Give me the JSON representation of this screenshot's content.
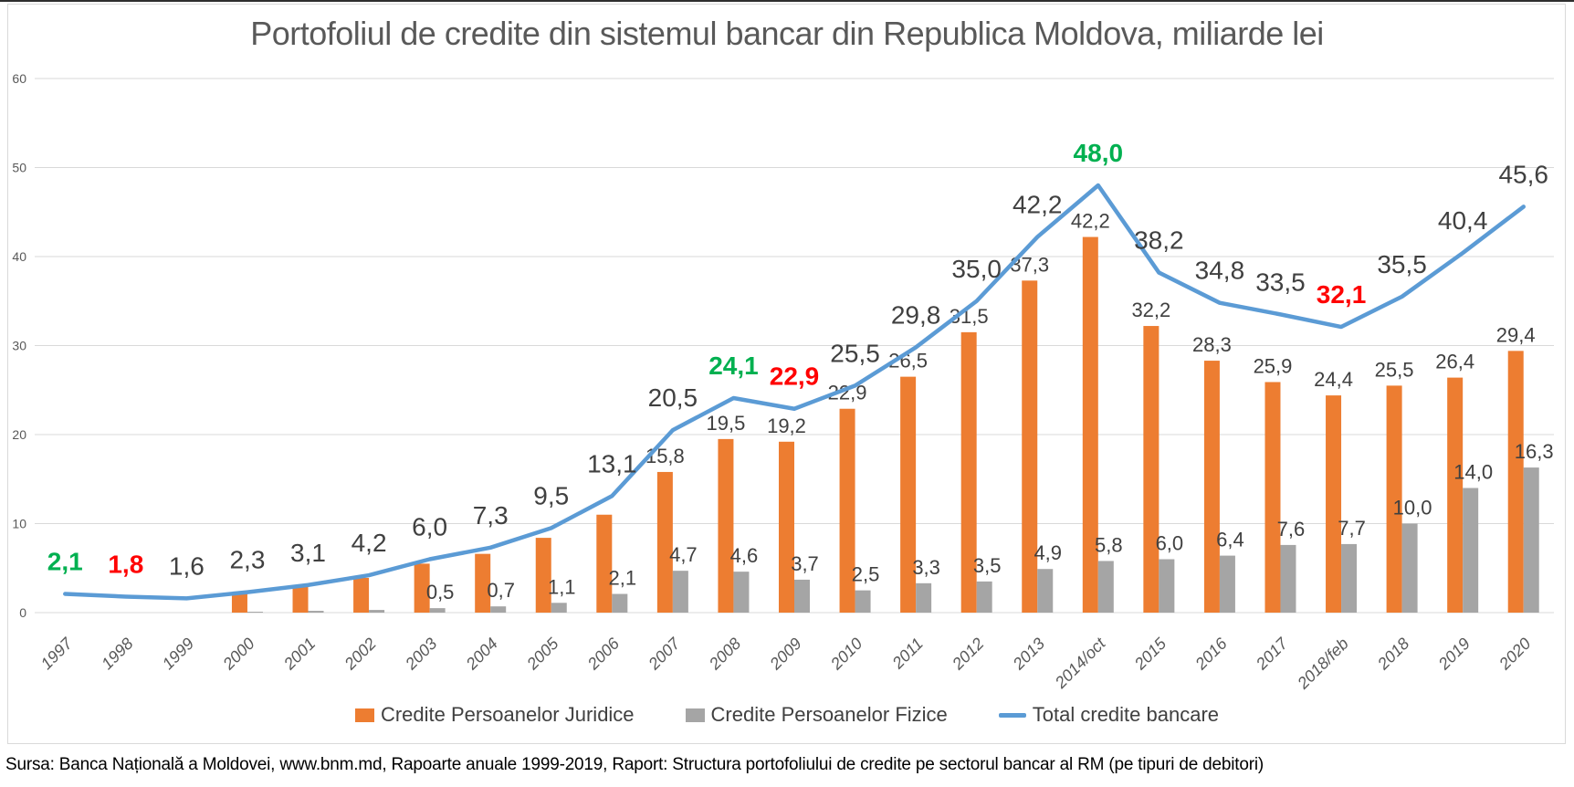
{
  "title": "Portofoliul de credite din sistemul bancar din Republica Moldova, miliarde lei",
  "source_note": "Sursa: Banca Națională a Moldovei, www.bnm.md, Rapoarte anuale 1999-2019, Raport: Structura portofoliului de credite pe sectorul bancar al RM (pe tipuri de debitori)",
  "legend": {
    "items": [
      {
        "label": "Credite Persoanelor Juridice",
        "color": "#ED7D31",
        "marker": "square"
      },
      {
        "label": "Credite Persoanelor Fizice",
        "color": "#A5A5A5",
        "marker": "square"
      },
      {
        "label": "Total credite bancare",
        "color": "#5B9BD5",
        "marker": "line"
      }
    ]
  },
  "chart_data": {
    "type": "bar+line",
    "title": "Portofoliul de credite din sistemul bancar din Republica Moldova, miliarde lei",
    "categories": [
      "1997",
      "1998",
      "1999",
      "2000",
      "2001",
      "2002",
      "2003",
      "2004",
      "2005",
      "2006",
      "2007",
      "2008",
      "2009",
      "2010",
      "2011",
      "2012",
      "2013",
      "2014/oct",
      "2015",
      "2016",
      "2017",
      "2018/feb",
      "2018",
      "2019",
      "2020"
    ],
    "series": [
      {
        "name": "Credite Persoanelor Juridice",
        "type": "bar",
        "color": "#ED7D31",
        "values": [
          null,
          null,
          null,
          2.1,
          2.9,
          3.9,
          5.5,
          6.6,
          8.4,
          11.0,
          15.8,
          19.5,
          19.2,
          22.9,
          26.5,
          31.5,
          37.3,
          42.2,
          32.2,
          28.3,
          25.9,
          24.4,
          25.5,
          26.4,
          29.4
        ],
        "data_labels": [
          null,
          null,
          null,
          null,
          null,
          null,
          null,
          null,
          null,
          null,
          "15,8",
          "19,5",
          "19,2",
          "22,9",
          "26,5",
          "31,5",
          "37,3",
          "42,2",
          "32,2",
          "28,3",
          "25,9",
          "24,4",
          "25,5",
          "26,4",
          "29,4"
        ]
      },
      {
        "name": "Credite Persoanelor Fizice",
        "type": "bar",
        "color": "#A5A5A5",
        "values": [
          null,
          null,
          null,
          0.1,
          0.2,
          0.3,
          0.5,
          0.7,
          1.1,
          2.1,
          4.7,
          4.6,
          3.7,
          2.5,
          3.3,
          3.5,
          4.9,
          5.8,
          6.0,
          6.4,
          7.6,
          7.7,
          10.0,
          14.0,
          16.3
        ],
        "data_labels": [
          null,
          null,
          null,
          null,
          null,
          null,
          "0,5",
          "0,7",
          "1,1",
          "2,1",
          "4,7",
          "4,6",
          "3,7",
          "2,5",
          "3,3",
          "3,5",
          "4,9",
          "5,8",
          "6,0",
          "6,4",
          "7,6",
          "7,7",
          "10,0",
          "14,0",
          "16,3"
        ]
      },
      {
        "name": "Total credite bancare",
        "type": "line",
        "color": "#5B9BD5",
        "values": [
          2.1,
          1.8,
          1.6,
          2.3,
          3.1,
          4.2,
          6.0,
          7.3,
          9.5,
          13.1,
          20.5,
          24.1,
          22.9,
          25.5,
          29.8,
          35.0,
          42.2,
          48.0,
          38.2,
          34.8,
          33.5,
          32.1,
          35.5,
          40.4,
          45.6
        ],
        "data_labels": [
          "2,1",
          "1,8",
          "1,6",
          "2,3",
          "3,1",
          "4,2",
          "6,0",
          "7,3",
          "9,5",
          "13,1",
          "20,5",
          "24,1",
          "22,9",
          "25,5",
          "29,8",
          "35,0",
          "42,2",
          "48,0",
          "38,2",
          "34,8",
          "33,5",
          "32,1",
          "35,5",
          "40,4",
          "45,6"
        ],
        "data_label_colors": [
          "#00B050",
          "#FF0000",
          "#404040",
          "#404040",
          "#404040",
          "#404040",
          "#404040",
          "#404040",
          "#404040",
          "#404040",
          "#404040",
          "#00B050",
          "#FF0000",
          "#404040",
          "#404040",
          "#404040",
          "#404040",
          "#00B050",
          "#404040",
          "#404040",
          "#404040",
          "#FF0000",
          "#404040",
          "#404040",
          "#404040"
        ]
      }
    ],
    "ylim": [
      0,
      60
    ],
    "yticks": [
      0,
      10,
      20,
      30,
      40,
      50,
      60
    ],
    "grid": true,
    "legend_position": "bottom",
    "x_tick_style": "italic rotated 45deg",
    "note_colors": {
      "highlight_green": "#00B050",
      "highlight_red": "#FF0000",
      "default_label": "#404040",
      "axis": "#595959",
      "gridline": "#D9D9D9"
    }
  }
}
